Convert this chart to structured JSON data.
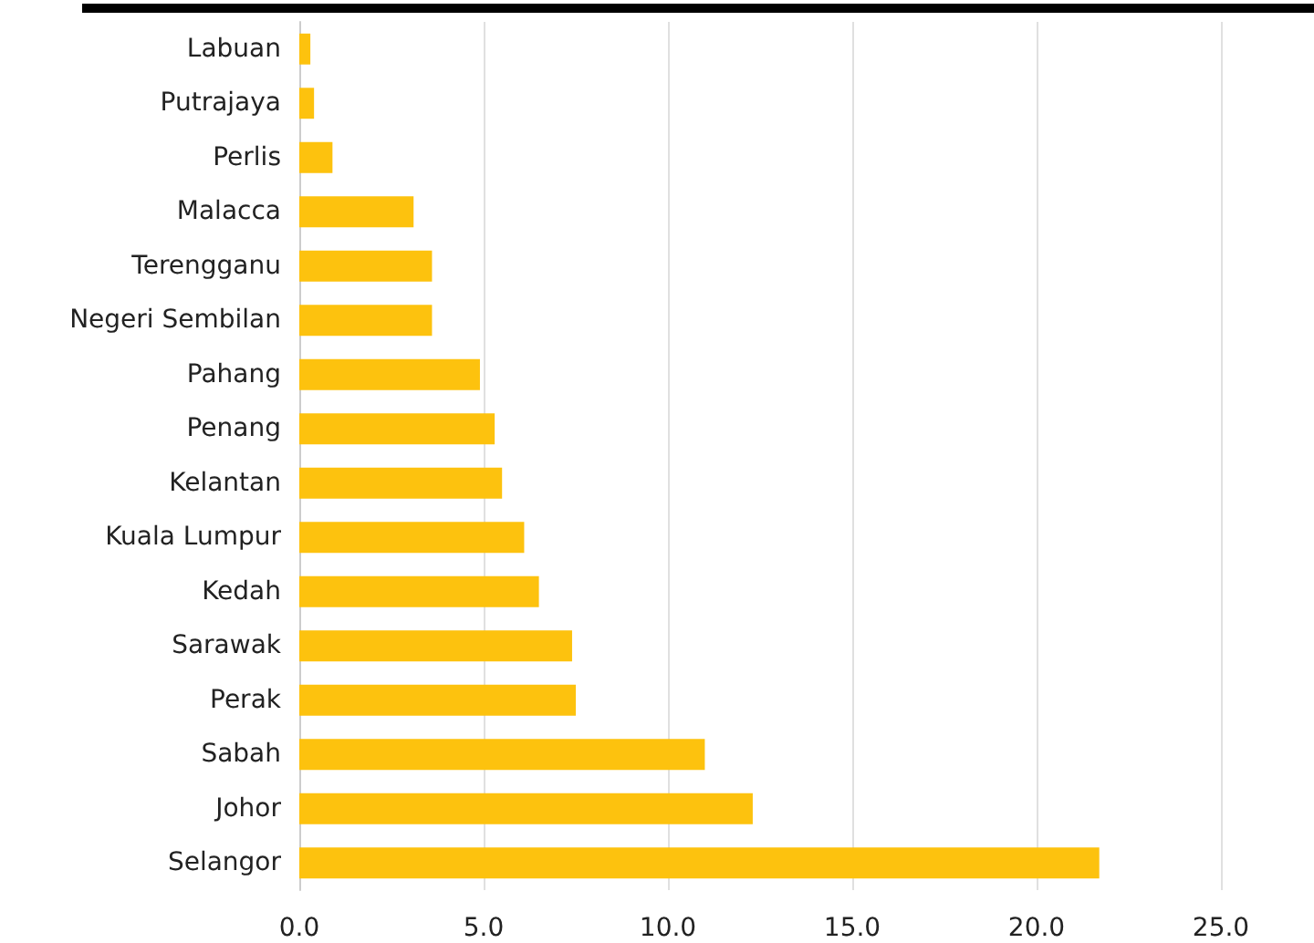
{
  "chart_data": {
    "type": "bar",
    "orientation": "horizontal",
    "categories": [
      "Labuan",
      "Putrajaya",
      "Perlis",
      "Malacca",
      "Terengganu",
      "Negeri Sembilan",
      "Pahang",
      "Penang",
      "Kelantan",
      "Kuala Lumpur",
      "Kedah",
      "Sarawak",
      "Perak",
      "Sabah",
      "Johor",
      "Selangor"
    ],
    "values": [
      0.3,
      0.4,
      0.9,
      3.1,
      3.6,
      3.6,
      4.9,
      5.3,
      5.5,
      6.1,
      6.5,
      7.4,
      7.5,
      11.0,
      12.3,
      21.7
    ],
    "color": "#fdc20e",
    "xlim": [
      0,
      25
    ],
    "xticks": [
      {
        "value": 0,
        "label": "0.0"
      },
      {
        "value": 5,
        "label": "5.0"
      },
      {
        "value": 10,
        "label": "10.0"
      },
      {
        "value": 15,
        "label": "15.0"
      },
      {
        "value": 20,
        "label": "20.0"
      },
      {
        "value": 25,
        "label": "25.0"
      }
    ],
    "grid": "x"
  }
}
